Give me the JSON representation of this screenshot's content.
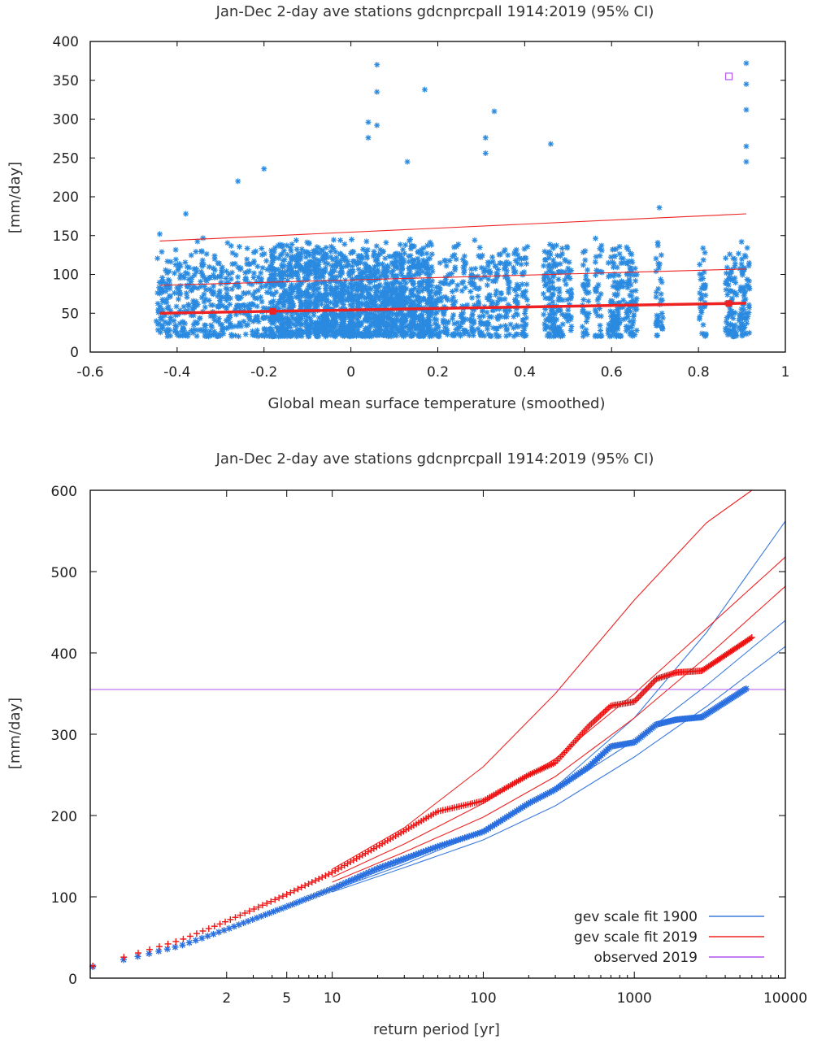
{
  "colors": {
    "scatter_blue": "#2a8ae0",
    "fit_2019_red": "#ee2222",
    "fit_1900_blue": "#3b7bdc",
    "observed_purple": "#b455ee",
    "points_red": "#ee1111",
    "points_blue": "#2a6fe0"
  },
  "chart_data": [
    {
      "type": "scatter",
      "title": "Jan-Dec 2-day ave stations gdcnprcpall 1914:2019 (95% CI)",
      "xlabel": "Global mean surface temperature (smoothed)",
      "ylabel": "[mm/day]",
      "xlim": [
        -0.6,
        1
      ],
      "ylim": [
        0,
        400
      ],
      "xticks": [
        "-0.6",
        "-0.4",
        "-0.2",
        "0",
        "0.2",
        "0.4",
        "0.6",
        "0.8",
        "1"
      ],
      "yticks": [
        "0",
        "50",
        "100",
        "150",
        "200",
        "250",
        "300",
        "350",
        "400"
      ],
      "marker": "asterisk",
      "grid": false,
      "series": [
        {
          "role": "points",
          "x_clusters": [
            -0.44,
            -0.42,
            -0.4,
            -0.38,
            -0.36,
            -0.34,
            -0.32,
            -0.3,
            -0.28,
            -0.26,
            -0.24,
            -0.22,
            -0.2,
            -0.18,
            -0.16,
            -0.14,
            -0.12,
            -0.1,
            -0.08,
            -0.06,
            -0.04,
            -0.02,
            0,
            0.02,
            0.04,
            0.06,
            0.08,
            0.1,
            0.12,
            0.14,
            0.16,
            0.18,
            0.2,
            0.22,
            0.24,
            0.26,
            0.28,
            0.3,
            0.32,
            0.34,
            0.36,
            0.38,
            0.4,
            0.45,
            0.46,
            0.47,
            0.48,
            0.5,
            0.54,
            0.57,
            0.6,
            0.61,
            0.62,
            0.64,
            0.65,
            0.71,
            0.81,
            0.87,
            0.88,
            0.9,
            0.91
          ],
          "typical_range": [
            20,
            110
          ],
          "outliers": [
            {
              "x": 0.06,
              "y": 370
            },
            {
              "x": 0.06,
              "y": 335
            },
            {
              "x": 0.06,
              "y": 292
            },
            {
              "x": 0.04,
              "y": 296
            },
            {
              "x": 0.04,
              "y": 276
            },
            {
              "x": 0.17,
              "y": 338
            },
            {
              "x": 0.31,
              "y": 276
            },
            {
              "x": 0.31,
              "y": 256
            },
            {
              "x": 0.33,
              "y": 310
            },
            {
              "x": 0.13,
              "y": 245
            },
            {
              "x": -0.2,
              "y": 236
            },
            {
              "x": -0.26,
              "y": 220
            },
            {
              "x": 0.46,
              "y": 268
            },
            {
              "x": 0.91,
              "y": 372
            },
            {
              "x": 0.91,
              "y": 345
            },
            {
              "x": 0.91,
              "y": 312
            },
            {
              "x": 0.91,
              "y": 265
            },
            {
              "x": 0.91,
              "y": 245
            },
            {
              "x": -0.44,
              "y": 152
            },
            {
              "x": -0.38,
              "y": 178
            },
            {
              "x": 0.71,
              "y": 186
            }
          ]
        },
        {
          "role": "fit-upper-95",
          "x": [
            -0.44,
            0.91
          ],
          "y": [
            143,
            178
          ]
        },
        {
          "role": "fit-middle",
          "x": [
            -0.44,
            0.91
          ],
          "y": [
            86,
            107
          ]
        },
        {
          "role": "fit-location",
          "x": [
            -0.44,
            0.91
          ],
          "y": [
            50,
            63
          ]
        }
      ],
      "annotations": [
        {
          "kind": "square-marker",
          "x": 0.87,
          "y": 355,
          "color": "#b455ee"
        }
      ]
    },
    {
      "type": "line",
      "title": "Jan-Dec 2-day ave stations gdcnprcpall 1914:2019 (95% CI)",
      "xlabel": "return period [yr]",
      "ylabel": "[mm/day]",
      "xscale": "log",
      "xlim": [
        0.25,
        10000
      ],
      "ylim": [
        0,
        600
      ],
      "xticks": [
        "2",
        "5",
        "10",
        "100",
        "1000",
        "10000"
      ],
      "yticks": [
        "0",
        "100",
        "200",
        "300",
        "400",
        "500",
        "600"
      ],
      "legend": {
        "placement": "bottom-right",
        "entries": [
          "gev scale fit 1900",
          "gev scale fit 2019",
          "observed 2019"
        ]
      },
      "series": [
        {
          "name": "gev scale fit 1900",
          "x": [
            10,
            30,
            100,
            300,
            1000,
            3000,
            10000
          ],
          "y": [
            108,
            140,
            180,
            235,
            320,
            425,
            562
          ]
        },
        {
          "name": "gev scale fit 1900 (CI low)",
          "x": [
            10,
            30,
            100,
            300,
            1000,
            3000,
            10000
          ],
          "y": [
            106,
            136,
            170,
            212,
            272,
            334,
            408
          ]
        },
        {
          "name": "gev scale fit 1900 (CI high)",
          "x": [
            10,
            30,
            100,
            300,
            1000,
            3000,
            10000
          ],
          "y": [
            110,
            143,
            183,
            230,
            292,
            360,
            440
          ]
        },
        {
          "name": "gev scale fit 2019",
          "x": [
            10,
            30,
            100,
            300,
            1000,
            3000,
            10000
          ],
          "y": [
            124,
            165,
            215,
            270,
            350,
            430,
            518
          ]
        },
        {
          "name": "gev scale fit 2019 (CI low)",
          "x": [
            10,
            30,
            100,
            300,
            1000,
            3000,
            10000
          ],
          "y": [
            118,
            155,
            198,
            248,
            320,
            395,
            482
          ]
        },
        {
          "name": "gev scale fit 2019 (CI high)",
          "x": [
            10,
            30,
            100,
            300,
            1000,
            3000,
            6000
          ],
          "y": [
            134,
            185,
            260,
            350,
            465,
            560,
            600
          ]
        },
        {
          "name": "observed 2019",
          "x": [
            0.25,
            10000
          ],
          "y": [
            355,
            355
          ]
        }
      ],
      "points_2019": {
        "marker": "plus",
        "x": [
          0.26,
          0.5,
          1,
          2,
          5,
          10,
          20,
          50,
          100,
          200,
          300,
          500,
          700,
          1000,
          1400,
          1900,
          2800,
          6000
        ],
        "y": [
          15,
          30,
          47,
          70,
          103,
          130,
          162,
          205,
          218,
          250,
          265,
          310,
          335,
          340,
          368,
          376,
          378,
          419
        ]
      },
      "points_1900": {
        "marker": "asterisk",
        "x": [
          0.26,
          0.5,
          1,
          2,
          5,
          10,
          20,
          50,
          100,
          200,
          300,
          500,
          700,
          1000,
          1400,
          1900,
          2800,
          5500
        ],
        "y": [
          14,
          26,
          40,
          60,
          88,
          110,
          135,
          162,
          180,
          215,
          232,
          260,
          285,
          290,
          312,
          318,
          321,
          356
        ]
      }
    }
  ]
}
